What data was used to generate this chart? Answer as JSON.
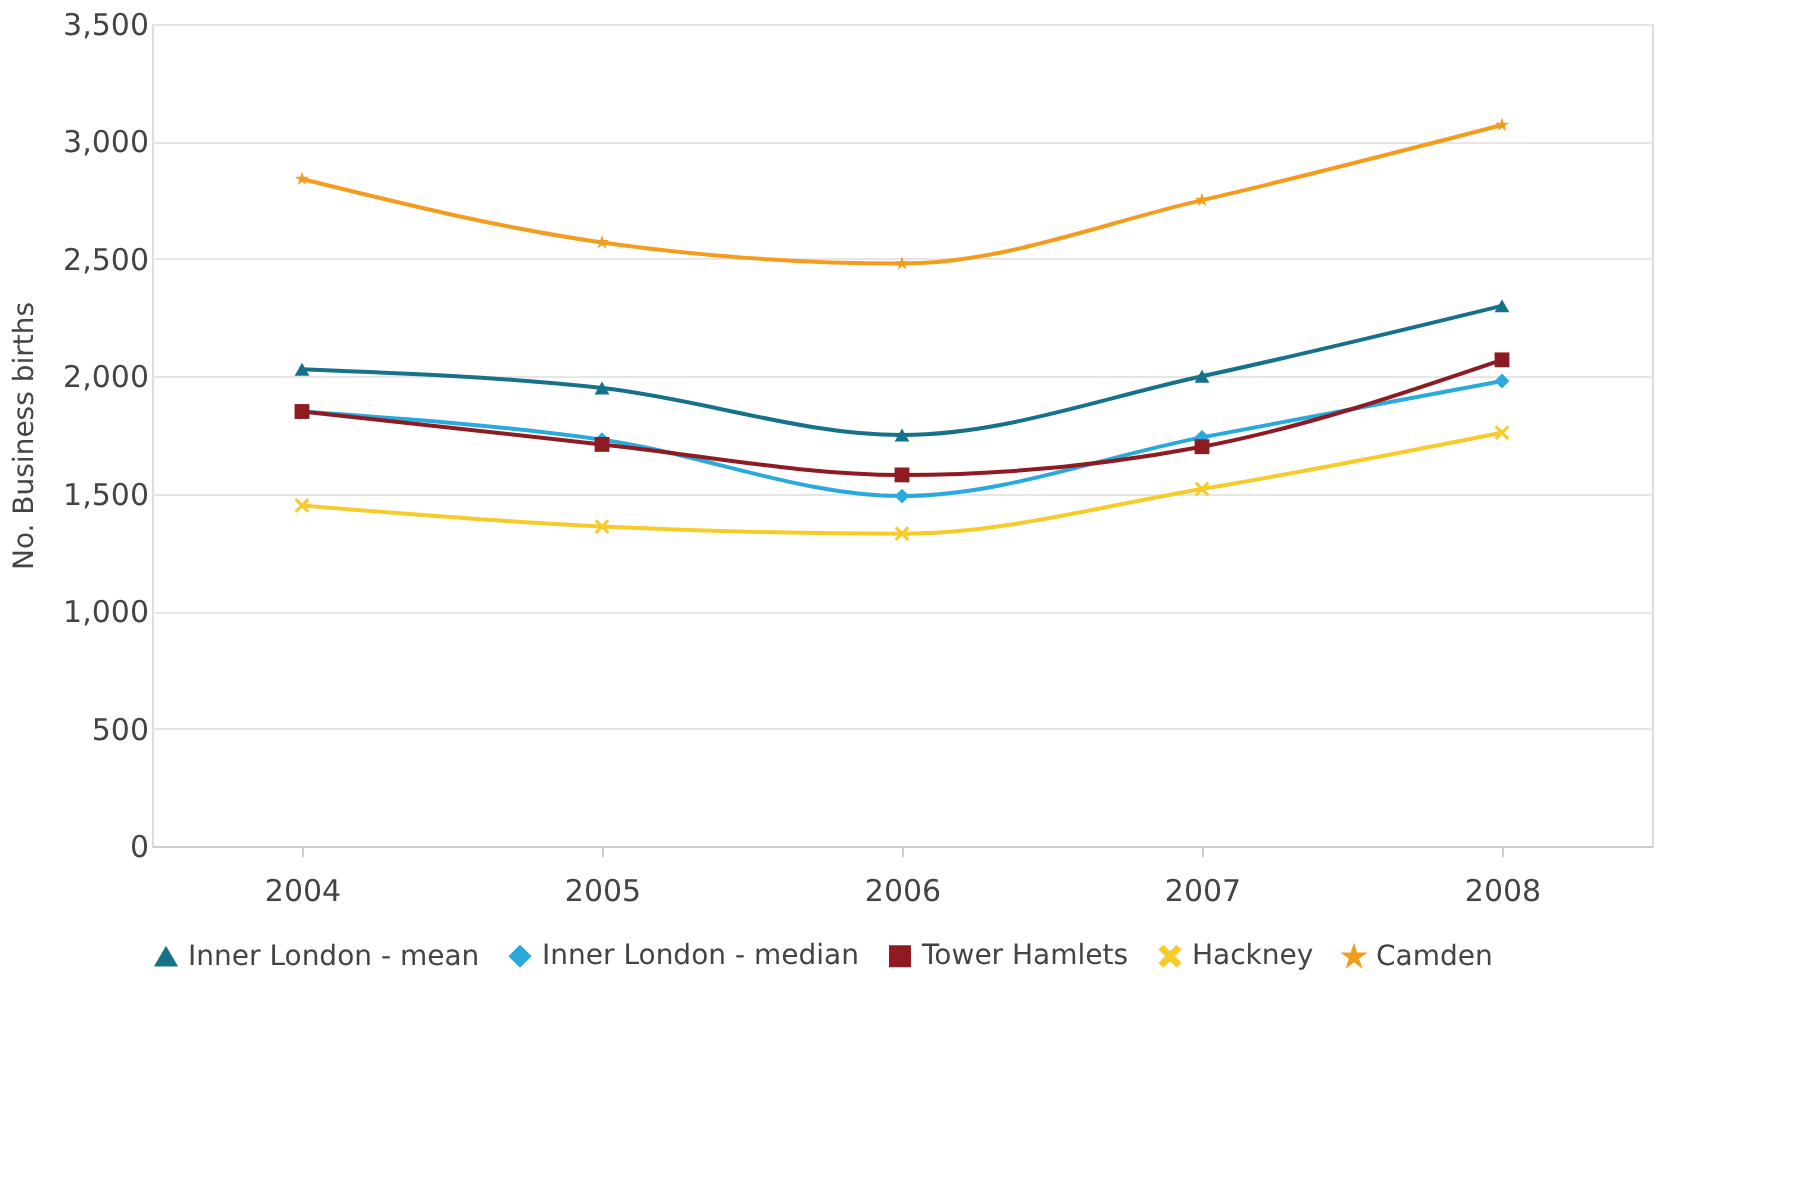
{
  "chart_data": {
    "type": "line",
    "ylabel": "No. Business births",
    "categories": [
      "2004",
      "2005",
      "2006",
      "2007",
      "2008"
    ],
    "ylim": [
      0,
      3500
    ],
    "yticks": [
      0,
      {
        "value": 500,
        "label": "500"
      },
      {
        "value": 1000,
        "label": "1,000"
      },
      {
        "value": 1500,
        "label": "1,500"
      },
      {
        "value": 2000,
        "label": "2,000"
      },
      {
        "value": 2500,
        "label": "2,500"
      },
      {
        "value": 3000,
        "label": "3,000"
      },
      {
        "value": 3500,
        "label": "3,500"
      }
    ],
    "grid": "y",
    "legend": "bottom",
    "line_style": "solid",
    "series": [
      {
        "name": "Inner London - mean",
        "color": "#17718a",
        "marker": "triangle",
        "values": [
          2030,
          1950,
          1750,
          2000,
          2300
        ]
      },
      {
        "name": "Inner London - median",
        "color": "#2aa9dc",
        "marker": "diamond",
        "values": [
          1850,
          1730,
          1490,
          1740,
          1980
        ]
      },
      {
        "name": "Tower Hamlets",
        "color": "#8e1b22",
        "marker": "square",
        "values": [
          1850,
          1710,
          1580,
          1700,
          2070
        ]
      },
      {
        "name": "Hackney",
        "color": "#f7cb2a",
        "marker": "cross",
        "values": [
          1450,
          1360,
          1330,
          1520,
          1760
        ]
      },
      {
        "name": "Camden",
        "color": "#f39c1e",
        "marker": "star",
        "values": [
          2840,
          2570,
          2480,
          2750,
          3070
        ]
      }
    ]
  }
}
